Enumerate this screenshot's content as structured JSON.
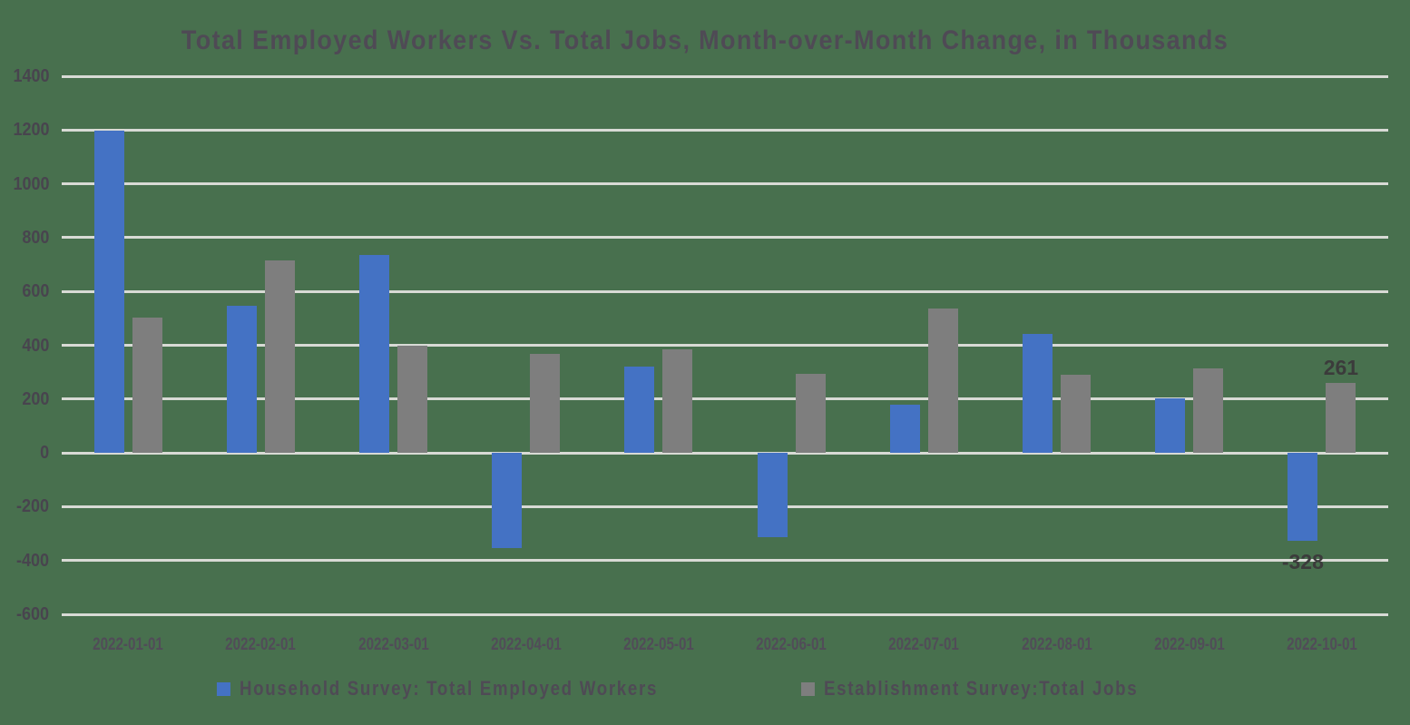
{
  "title": "Total Employed Workers Vs. Total Jobs, Month-over-Month Change, in Thousands",
  "colors": {
    "background": "#48704E",
    "household_blue": "#4472C4",
    "establishment_gray": "#7E7E7E",
    "gridline": "#D8DAD5",
    "title_text": "#4F4A55",
    "axis_text": "#48444E",
    "data_label_text": "#3B3B3B"
  },
  "chart_data": {
    "type": "bar",
    "title": "Total Employed Workers Vs. Total Jobs, Month-over-Month Change, in Thousands",
    "categories": [
      "2022-01-01",
      "2022-02-01",
      "2022-03-01",
      "2022-04-01",
      "2022-05-01",
      "2022-06-01",
      "2022-07-01",
      "2022-08-01",
      "2022-09-01",
      "2022-10-01"
    ],
    "series": [
      {
        "name": "Household Survey: Total Employed Workers",
        "color": "#4472C4",
        "values": [
          1199,
          548,
          736,
          -353,
          321,
          -315,
          179,
          442,
          204,
          -328
        ],
        "data_labels": [
          null,
          null,
          null,
          null,
          null,
          null,
          null,
          null,
          null,
          "-328"
        ]
      },
      {
        "name": "Establishment Survey:Total Jobs",
        "color": "#7E7E7E",
        "values": [
          504,
          714,
          398,
          368,
          386,
          293,
          537,
          292,
          315,
          261
        ],
        "data_labels": [
          null,
          null,
          null,
          null,
          null,
          null,
          null,
          null,
          null,
          "261"
        ]
      }
    ],
    "ylim": [
      -600,
      1400
    ],
    "yticks": [
      1400,
      1200,
      1000,
      800,
      600,
      400,
      200,
      0,
      -200,
      -400,
      -600
    ],
    "grid": true,
    "legend_position": "bottom",
    "xlabel": "",
    "ylabel": ""
  }
}
